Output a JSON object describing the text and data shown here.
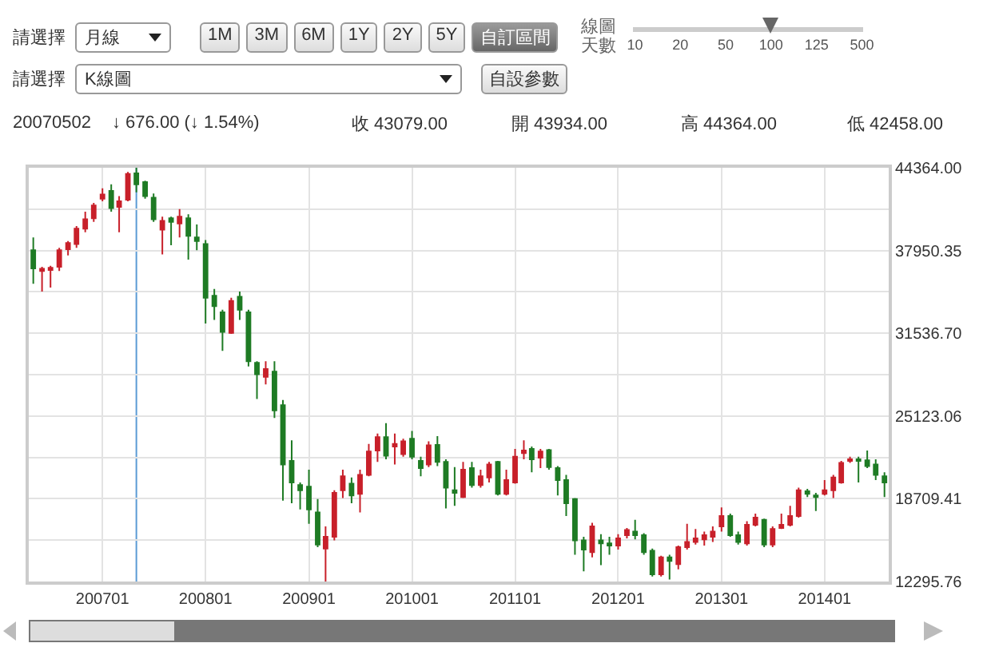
{
  "chart_data": {
    "type": "candlestick",
    "annotations": [
      "請選擇",
      "月線",
      "1M",
      "3M",
      "6M",
      "1Y",
      "2Y",
      "5Y",
      "自訂區間",
      "線圖天數",
      "10",
      "20",
      "50",
      "100",
      "125",
      "500",
      "請選擇",
      "K線圖",
      "自設參數",
      "20070502",
      "↓ 676.00 (↓ 1.54%)",
      "收 43079.00",
      "開 43934.00",
      "高 44364.00",
      "低 42458.00"
    ],
    "x": [
      "2006-05",
      "2006-06",
      "2006-07",
      "2006-08",
      "2006-09",
      "2006-10",
      "2006-11",
      "2006-12",
      "2007-01",
      "2007-02",
      "2007-03",
      "2007-04",
      "2007-05",
      "2007-06",
      "2007-07",
      "2007-08",
      "2007-09",
      "2007-10",
      "2007-11",
      "2007-12",
      "2008-01",
      "2008-02",
      "2008-03",
      "2008-04",
      "2008-05",
      "2008-06",
      "2008-07",
      "2008-08",
      "2008-09",
      "2008-10",
      "2008-11",
      "2008-12",
      "2009-01",
      "2009-02",
      "2009-03",
      "2009-04",
      "2009-05",
      "2009-06",
      "2009-07",
      "2009-08",
      "2009-09",
      "2009-10",
      "2009-11",
      "2009-12",
      "2010-01",
      "2010-02",
      "2010-03",
      "2010-04",
      "2010-05",
      "2010-06",
      "2010-07",
      "2010-08",
      "2010-09",
      "2010-10",
      "2010-11",
      "2010-12",
      "2011-01",
      "2011-02",
      "2011-03",
      "2011-04",
      "2011-05",
      "2011-06",
      "2011-07",
      "2011-08",
      "2011-09",
      "2011-10",
      "2011-11",
      "2011-12",
      "2012-01",
      "2012-02",
      "2012-03",
      "2012-04",
      "2012-05",
      "2012-06",
      "2012-07",
      "2012-08",
      "2012-09",
      "2012-10",
      "2012-11",
      "2012-12",
      "2013-01",
      "2013-02",
      "2013-03",
      "2013-04",
      "2013-05",
      "2013-06",
      "2013-07",
      "2013-08",
      "2013-09",
      "2013-10",
      "2013-11",
      "2013-12",
      "2014-01",
      "2014-02",
      "2014-03",
      "2014-04",
      "2014-05",
      "2014-06",
      "2014-07",
      "2014-08"
    ],
    "ohlc": [
      [
        37965,
        38965,
        35365,
        36565
      ],
      [
        36365,
        36685,
        34765,
        36525
      ],
      [
        36445,
        36765,
        35085,
        36605
      ],
      [
        36685,
        38165,
        36365,
        37965
      ],
      [
        38045,
        38685,
        37565,
        38525
      ],
      [
        38445,
        39845,
        38165,
        39645
      ],
      [
        39645,
        40965,
        39365,
        40365
      ],
      [
        40445,
        41645,
        40165,
        41445
      ],
      [
        41965,
        42765,
        41765,
        42285
      ],
      [
        42565,
        43085,
        40965,
        41245
      ],
      [
        41325,
        42165,
        39365,
        41765
      ],
      [
        41885,
        44045,
        41765,
        43885
      ],
      [
        43934,
        44364,
        42458,
        43079
      ],
      [
        43245,
        43365,
        41965,
        42165
      ],
      [
        42045,
        42365,
        40165,
        40365
      ],
      [
        39565,
        40565,
        37645,
        40245
      ],
      [
        40445,
        40565,
        38365,
        40165
      ],
      [
        40045,
        41165,
        38965,
        40565
      ],
      [
        40445,
        40765,
        37245,
        39085
      ],
      [
        38965,
        39965,
        37965,
        38685
      ],
      [
        38445,
        38765,
        32285,
        34285
      ],
      [
        34445,
        34965,
        32565,
        33645
      ],
      [
        33165,
        33365,
        30165,
        31645
      ],
      [
        31565,
        34285,
        31485,
        34045
      ],
      [
        34365,
        34765,
        32565,
        33365
      ],
      [
        33165,
        33365,
        28965,
        29365
      ],
      [
        29245,
        29365,
        26445,
        28365
      ],
      [
        28165,
        29365,
        27565,
        28765
      ],
      [
        28565,
        29365,
        24965,
        25565
      ],
      [
        25965,
        26365,
        18565,
        21365
      ],
      [
        21645,
        23245,
        18365,
        19965
      ],
      [
        19765,
        19965,
        17885,
        19365
      ],
      [
        19645,
        20965,
        16765,
        17885
      ],
      [
        17645,
        18685,
        14965,
        15165
      ],
      [
        14845,
        16565,
        12295.76,
        15765
      ],
      [
        15765,
        19365,
        15485,
        19165
      ],
      [
        19365,
        20965,
        18765,
        20445
      ],
      [
        19885,
        20365,
        18365,
        18965
      ],
      [
        19085,
        20965,
        17645,
        20565
      ],
      [
        20565,
        22965,
        20445,
        22365
      ],
      [
        22445,
        23765,
        21565,
        23485
      ],
      [
        23485,
        24565,
        21765,
        22045
      ],
      [
        22765,
        23765,
        21365,
        22965
      ],
      [
        22165,
        23365,
        21965,
        23165
      ],
      [
        23365,
        23965,
        21765,
        21965
      ],
      [
        21645,
        21965,
        20445,
        21085
      ],
      [
        21365,
        23165,
        21165,
        22845
      ],
      [
        22885,
        23565,
        21245,
        21565
      ],
      [
        21565,
        21765,
        17965,
        19565
      ],
      [
        19365,
        21165,
        18165,
        19165
      ],
      [
        18845,
        21565,
        18765,
        20965
      ],
      [
        21085,
        21565,
        19565,
        19765
      ],
      [
        19765,
        20965,
        19565,
        20445
      ],
      [
        20365,
        21565,
        19965,
        21365
      ],
      [
        21565,
        21645,
        18965,
        19085
      ],
      [
        19085,
        20965,
        18965,
        20165
      ],
      [
        19965,
        22565,
        19885,
        21965
      ],
      [
        22245,
        23245,
        21765,
        22445
      ],
      [
        22565,
        22765,
        20765,
        21765
      ],
      [
        21885,
        22565,
        21085,
        22365
      ],
      [
        22485,
        22565,
        20965,
        21165
      ],
      [
        21085,
        21245,
        18965,
        20165
      ],
      [
        20165,
        20565,
        17365,
        18365
      ],
      [
        18685,
        18765,
        14365,
        15485
      ],
      [
        15485,
        15765,
        13085,
        14765
      ],
      [
        14565,
        16845,
        14165,
        16565
      ],
      [
        15485,
        15965,
        13565,
        15245
      ],
      [
        15245,
        15765,
        14365,
        15085
      ],
      [
        15085,
        15965,
        14765,
        15645
      ],
      [
        15885,
        16445,
        15645,
        16285
      ],
      [
        16165,
        17085,
        15565,
        15885
      ],
      [
        15885,
        16045,
        14365,
        14565
      ],
      [
        14685,
        14845,
        12685,
        12845
      ],
      [
        12845,
        14285,
        12685,
        14165
      ],
      [
        14165,
        14365,
        12445,
        13885
      ],
      [
        13645,
        15085,
        13245,
        14965
      ],
      [
        14965,
        16765,
        14765,
        15365
      ],
      [
        15365,
        16365,
        15165,
        15645
      ],
      [
        15565,
        16165,
        15085,
        15885
      ],
      [
        15765,
        16565,
        15365,
        16165
      ],
      [
        16565,
        18045,
        16165,
        17365
      ],
      [
        17365,
        17565,
        15765,
        15885
      ],
      [
        15885,
        16165,
        15165,
        15365
      ],
      [
        15245,
        16965,
        15085,
        16685
      ],
      [
        16685,
        17565,
        16565,
        17245
      ],
      [
        17085,
        17165,
        14965,
        15165
      ],
      [
        15165,
        16565,
        14965,
        16365
      ],
      [
        16445,
        17565,
        16365,
        16685
      ],
      [
        16685,
        18165,
        16565,
        17365
      ],
      [
        17365,
        19565,
        17245,
        19365
      ],
      [
        19285,
        19485,
        18845,
        19085
      ],
      [
        18965,
        19165,
        17765,
        18845
      ],
      [
        19085,
        20165,
        18965,
        19365
      ],
      [
        19365,
        20565,
        18765,
        20365
      ],
      [
        19965,
        21645,
        19885,
        21485
      ],
      [
        21645,
        21965,
        21485,
        21765
      ],
      [
        21765,
        21965,
        19965,
        21645
      ],
      [
        21685,
        22445,
        21085,
        21245
      ],
      [
        21365,
        21765,
        20165,
        20565
      ],
      [
        20445,
        20765,
        18845,
        19965
      ]
    ],
    "colors": [
      "#1e7b24",
      "#c8202a",
      "#c8202a",
      "#c8202a",
      "#c8202a",
      "#c8202a",
      "#c8202a",
      "#c8202a",
      "#c8202a",
      "#1e7b24",
      "#c8202a",
      "#c8202a",
      "#1e7b24",
      "#1e7b24",
      "#1e7b24",
      "#c8202a",
      "#1e7b24",
      "#c8202a",
      "#1e7b24",
      "#1e7b24",
      "#1e7b24",
      "#1e7b24",
      "#1e7b24",
      "#c8202a",
      "#1e7b24",
      "#1e7b24",
      "#1e7b24",
      "#c8202a",
      "#1e7b24",
      "#1e7b24",
      "#1e7b24",
      "#1e7b24",
      "#1e7b24",
      "#1e7b24",
      "#c8202a",
      "#c8202a",
      "#c8202a",
      "#1e7b24",
      "#c8202a",
      "#c8202a",
      "#c8202a",
      "#1e7b24",
      "#c8202a",
      "#c8202a",
      "#1e7b24",
      "#1e7b24",
      "#c8202a",
      "#1e7b24",
      "#1e7b24",
      "#1e7b24",
      "#c8202a",
      "#1e7b24",
      "#c8202a",
      "#c8202a",
      "#1e7b24",
      "#c8202a",
      "#c8202a",
      "#c8202a",
      "#1e7b24",
      "#c8202a",
      "#1e7b24",
      "#1e7b24",
      "#1e7b24",
      "#1e7b24",
      "#1e7b24",
      "#c8202a",
      "#1e7b24",
      "#1e7b24",
      "#c8202a",
      "#c8202a",
      "#1e7b24",
      "#1e7b24",
      "#1e7b24",
      "#c8202a",
      "#1e7b24",
      "#c8202a",
      "#c8202a",
      "#c8202a",
      "#c8202a",
      "#c8202a",
      "#c8202a",
      "#1e7b24",
      "#1e7b24",
      "#c8202a",
      "#c8202a",
      "#1e7b24",
      "#c8202a",
      "#c8202a",
      "#c8202a",
      "#c8202a",
      "#1e7b24",
      "#1e7b24",
      "#c8202a",
      "#c8202a",
      "#c8202a",
      "#c8202a",
      "#1e7b24",
      "#1e7b24",
      "#1e7b24",
      "#1e7b24"
    ],
    "xlim": [
      "2006-04-15",
      "2014-08-16"
    ],
    "xticks": [
      {
        "value": "2007-01",
        "label": "200701"
      },
      {
        "value": "2008-01",
        "label": "200801"
      },
      {
        "value": "2009-01",
        "label": "200901"
      },
      {
        "value": "2010-01",
        "label": "201001"
      },
      {
        "value": "2011-01",
        "label": "201101"
      },
      {
        "value": "2012-01",
        "label": "201201"
      },
      {
        "value": "2013-01",
        "label": "201301"
      },
      {
        "value": "2014-01",
        "label": "201401"
      }
    ],
    "ylim": [
      12295.76,
      44364
    ],
    "yticks": [
      {
        "value": 12295.76,
        "label": "12295.76"
      },
      {
        "value": 15502.58,
        "label": null
      },
      {
        "value": 18709.41,
        "label": "18709.41"
      },
      {
        "value": 21916.23,
        "label": null
      },
      {
        "value": 25123.06,
        "label": "25123.06"
      },
      {
        "value": 28329.88,
        "label": null
      },
      {
        "value": 31536.7,
        "label": "31536.70"
      },
      {
        "value": 34743.53,
        "label": null
      },
      {
        "value": 37950.35,
        "label": "37950.35"
      },
      {
        "value": 41157.18,
        "label": null
      },
      {
        "value": 44364,
        "label": "44364.00"
      }
    ],
    "ref_lines": [
      {
        "axis": "x",
        "value": "2007-05",
        "color": "#5b9bd5"
      }
    ],
    "grid": true
  }
}
